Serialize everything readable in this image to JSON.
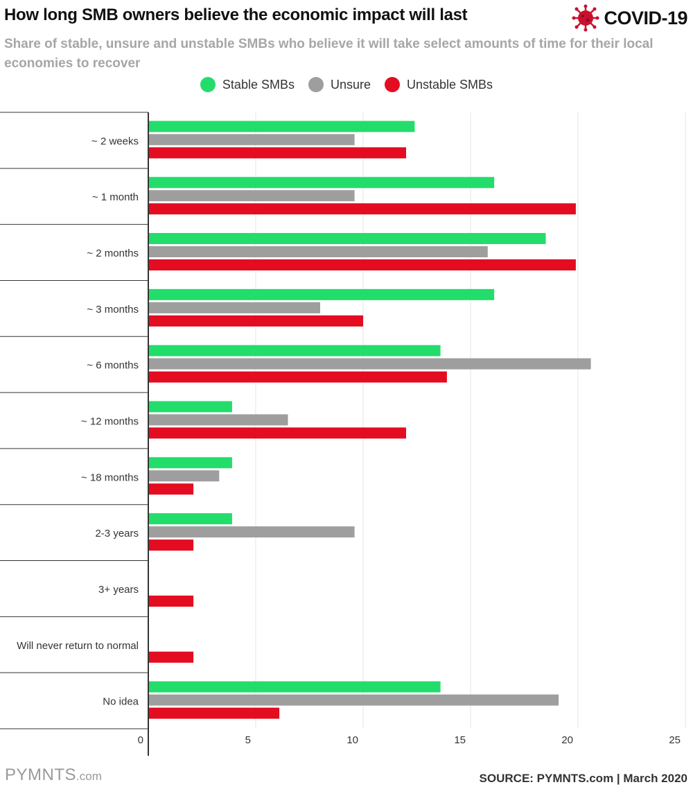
{
  "header": {
    "title": "How long SMB owners believe the economic impact will last",
    "badge": "COVID-19",
    "subtitle": "Share of stable, unsure and unstable SMBs who believe it will take select amounts of time for their local economies to recover"
  },
  "footer": {
    "logo_main": "PYMNTS",
    "logo_suffix": ".com",
    "source": "SOURCE: PYMNTS.com  |  March 2020"
  },
  "colors": {
    "stable": "#22dd6b",
    "unsure": "#9e9e9e",
    "unstable": "#e30c20",
    "badge": "#c8102e"
  },
  "chart_data": {
    "type": "bar",
    "orientation": "horizontal",
    "title": "How long SMB owners believe the economic impact will last",
    "xlabel": "",
    "ylabel": "",
    "xlim": [
      0,
      25
    ],
    "x_ticks": [
      0,
      5,
      10,
      15,
      20,
      25
    ],
    "grid": true,
    "legend_position": "top-center",
    "categories": [
      "~ 2 weeks",
      "~ 1 month",
      "~ 2 months",
      "~ 3 months",
      "~ 6 months",
      "~ 12 months",
      "~ 18 months",
      "2-3 years",
      "3+ years",
      "Will never return to normal",
      "No idea"
    ],
    "series": [
      {
        "name": "Stable SMBs",
        "key": "stable",
        "values": [
          12.4,
          16.1,
          18.5,
          16.1,
          13.6,
          3.9,
          3.9,
          3.9,
          0,
          0,
          13.6
        ]
      },
      {
        "name": "Unsure",
        "key": "unsure",
        "values": [
          9.6,
          9.6,
          15.8,
          8.0,
          20.6,
          6.5,
          3.3,
          9.6,
          0,
          0,
          19.1
        ]
      },
      {
        "name": "Unstable SMBs",
        "key": "unstable",
        "values": [
          12.0,
          19.9,
          19.9,
          10.0,
          13.9,
          12.0,
          2.1,
          2.1,
          2.1,
          2.1,
          6.1
        ]
      }
    ]
  }
}
